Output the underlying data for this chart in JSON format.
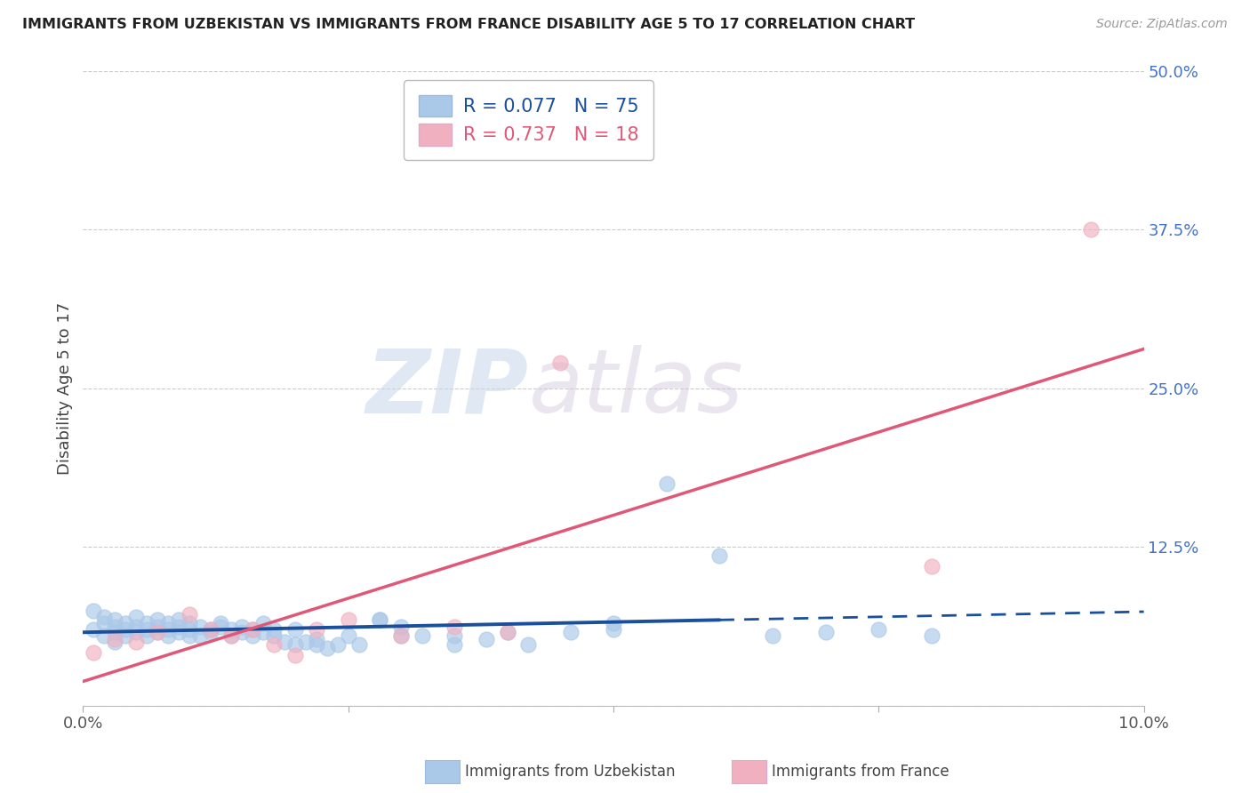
{
  "title": "IMMIGRANTS FROM UZBEKISTAN VS IMMIGRANTS FROM FRANCE DISABILITY AGE 5 TO 17 CORRELATION CHART",
  "source": "Source: ZipAtlas.com",
  "ylabel": "Disability Age 5 to 17",
  "xlim": [
    0.0,
    0.1
  ],
  "ylim": [
    0.0,
    0.5
  ],
  "yticks": [
    0.0,
    0.125,
    0.25,
    0.375,
    0.5
  ],
  "yticklabels_right": [
    "",
    "12.5%",
    "25.0%",
    "37.5%",
    "50.0%"
  ],
  "xticks": [
    0.0,
    0.025,
    0.05,
    0.075,
    0.1
  ],
  "xticklabels": [
    "0.0%",
    "",
    "",
    "",
    "10.0%"
  ],
  "grid_color": "#cccccc",
  "bg_color": "#ffffff",
  "series1_label": "Immigrants from Uzbekistan",
  "series1_dot_color": "#aac8e8",
  "series1_line_color": "#1a4f9c",
  "series1_R": "0.077",
  "series1_N": "75",
  "series2_label": "Immigrants from France",
  "series2_dot_color": "#f0b0c0",
  "series2_line_color": "#e05878",
  "series2_R": "0.737",
  "series2_N": "18",
  "watermark_zip": "ZIP",
  "watermark_atlas": "atlas",
  "uz_x": [
    0.001,
    0.001,
    0.002,
    0.002,
    0.002,
    0.003,
    0.003,
    0.003,
    0.003,
    0.004,
    0.004,
    0.004,
    0.005,
    0.005,
    0.005,
    0.006,
    0.006,
    0.006,
    0.007,
    0.007,
    0.007,
    0.008,
    0.008,
    0.008,
    0.009,
    0.009,
    0.009,
    0.01,
    0.01,
    0.01,
    0.011,
    0.011,
    0.012,
    0.012,
    0.013,
    0.013,
    0.014,
    0.014,
    0.015,
    0.015,
    0.016,
    0.016,
    0.017,
    0.017,
    0.018,
    0.018,
    0.019,
    0.02,
    0.021,
    0.022,
    0.023,
    0.024,
    0.025,
    0.026,
    0.028,
    0.03,
    0.032,
    0.035,
    0.038,
    0.042,
    0.046,
    0.05,
    0.055,
    0.06,
    0.065,
    0.07,
    0.075,
    0.08,
    0.05,
    0.04,
    0.03,
    0.022,
    0.028,
    0.035,
    0.02
  ],
  "uz_y": [
    0.06,
    0.075,
    0.065,
    0.055,
    0.07,
    0.058,
    0.062,
    0.068,
    0.05,
    0.055,
    0.06,
    0.065,
    0.058,
    0.062,
    0.07,
    0.055,
    0.06,
    0.065,
    0.058,
    0.062,
    0.068,
    0.055,
    0.06,
    0.065,
    0.058,
    0.062,
    0.068,
    0.055,
    0.06,
    0.065,
    0.062,
    0.055,
    0.06,
    0.058,
    0.062,
    0.065,
    0.055,
    0.06,
    0.058,
    0.062,
    0.055,
    0.06,
    0.065,
    0.058,
    0.055,
    0.06,
    0.05,
    0.048,
    0.05,
    0.052,
    0.045,
    0.048,
    0.055,
    0.048,
    0.068,
    0.062,
    0.055,
    0.048,
    0.052,
    0.048,
    0.058,
    0.06,
    0.175,
    0.118,
    0.055,
    0.058,
    0.06,
    0.055,
    0.065,
    0.058,
    0.055,
    0.048,
    0.068,
    0.055,
    0.06
  ],
  "fr_x": [
    0.001,
    0.003,
    0.005,
    0.007,
    0.01,
    0.012,
    0.014,
    0.016,
    0.018,
    0.02,
    0.022,
    0.025,
    0.03,
    0.035,
    0.04,
    0.045,
    0.08,
    0.095
  ],
  "fr_y": [
    0.042,
    0.052,
    0.05,
    0.058,
    0.072,
    0.06,
    0.055,
    0.06,
    0.048,
    0.04,
    0.06,
    0.068,
    0.055,
    0.062,
    0.058,
    0.27,
    0.11,
    0.375
  ],
  "uz_line_solid_end": 0.06,
  "legend_patch1_color": "#aac8e8",
  "legend_patch2_color": "#f0b0c0",
  "title_fontsize": 11.5,
  "source_fontsize": 10,
  "tick_fontsize": 13,
  "ylabel_fontsize": 13
}
